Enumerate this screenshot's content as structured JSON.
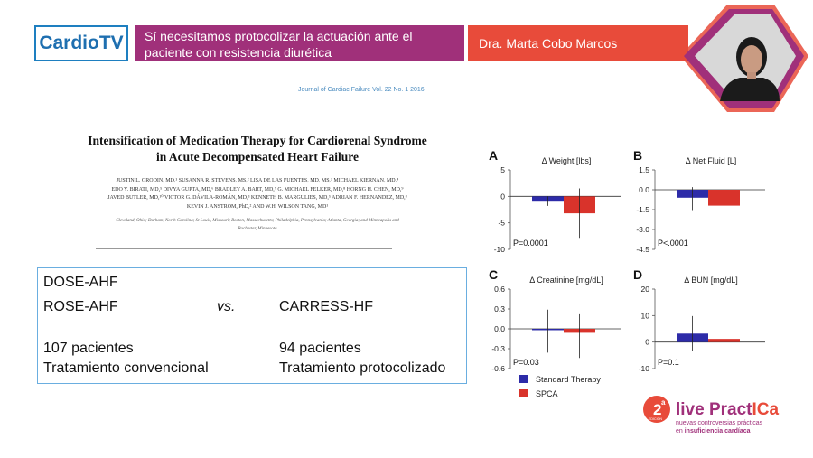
{
  "header": {
    "logo": "CardioTV",
    "title": "Sí necesitamos protocolizar la actuación ante el paciente con resistencia diurética",
    "speaker": "Dra. Marta Cobo Marcos"
  },
  "paper": {
    "journal": "Journal of Cardiac Failure Vol. 22 No. 1 2016",
    "title_line1": "Intensification of Medication Therapy for Cardiorenal Syndrome",
    "title_line2": "in Acute Decompensated Heart Failure",
    "authors_line1": "JUSTIN L. GRODIN, MD,¹ SUSANNA R. STEVENS, MS,² LISA DE LAS FUENTES, MD, MS,³ MICHAEL KIERNAN, MD,⁴",
    "authors_line2": "EDO Y. BIRATI, MD,⁵ DIVYA GUPTA, MD,⁶ BRADLEY A. BART, MD,⁷ G. MICHAEL FELKER, MD,⁸ HORNG H. CHEN, MD,⁹",
    "authors_line3": "JAVED BUTLER, MD,¹⁰ VICTOR G. DÁVILA-ROMÁN, MD,³ KENNETH B. MARGULIES, MD,⁵ ADRIAN F. HERNANDEZ, MD,⁸",
    "authors_line4": "KEVIN J. ANSTROM, PhD,² AND W.H. WILSON TANG, MD¹",
    "affiliations_line1": "Cleveland, Ohio; Durham, North Carolina; St Louis, Missouri; Boston, Massachusetts; Philadelphia, Pennsylvania; Atlanta, Georgia; and Minneapolis and",
    "affiliations_line2": "Rochester, Minnesota"
  },
  "comparison": {
    "left_trial1": "DOSE-AHF",
    "left_trial2": "ROSE-AHF",
    "vs": "vs.",
    "right_trial": "CARRESS-HF",
    "left_count": "107 pacientes",
    "left_treatment": "Tratamiento convencional",
    "right_count": "94 pacientes",
    "right_treatment": "Tratamiento protocolizado"
  },
  "chart_data": [
    {
      "type": "bar",
      "panel": "A",
      "title": "Δ Weight [lbs]",
      "yticks": [
        5,
        0,
        -5,
        -10
      ],
      "ylim": [
        -10,
        5
      ],
      "series": [
        {
          "name": "Standard Therapy",
          "value": -1.0,
          "ci": [
            -1.8,
            0.0
          ]
        },
        {
          "name": "SPCA",
          "value": -3.2,
          "ci": [
            -8.0,
            1.5
          ]
        }
      ],
      "annotation": "P=0.0001"
    },
    {
      "type": "bar",
      "panel": "B",
      "title": "Δ Net Fluid [L]",
      "yticks": [
        "1.5",
        "0.0",
        "-1.5",
        "-3.0",
        "-4.5"
      ],
      "ylim": [
        -4.5,
        1.5
      ],
      "series": [
        {
          "name": "Standard Therapy",
          "value": -0.6,
          "ci": [
            -1.6,
            0.2
          ]
        },
        {
          "name": "SPCA",
          "value": -1.2,
          "ci": [
            -2.1,
            0.0
          ]
        }
      ],
      "annotation": "P<.0001"
    },
    {
      "type": "bar",
      "panel": "C",
      "title": "Δ Creatinine [mg/dL]",
      "yticks": [
        "0.6",
        "0.3",
        "0.0",
        "-0.3",
        "-0.6"
      ],
      "ylim": [
        -0.6,
        0.6
      ],
      "series": [
        {
          "name": "Standard Therapy",
          "value": -0.02,
          "ci": [
            -0.36,
            0.29
          ]
        },
        {
          "name": "SPCA",
          "value": -0.06,
          "ci": [
            -0.44,
            0.22
          ]
        }
      ],
      "annotation": "P=0.03"
    },
    {
      "type": "bar",
      "panel": "D",
      "title": "Δ BUN [mg/dL]",
      "yticks": [
        20,
        10,
        0,
        -10
      ],
      "ylim": [
        -10,
        20
      ],
      "series": [
        {
          "name": "Standard Therapy",
          "value": 3.2,
          "ci": [
            -3.2,
            9.8
          ]
        },
        {
          "name": "SPCA",
          "value": 1.2,
          "ci": [
            -9.5,
            12.0
          ]
        }
      ],
      "annotation": "P=0.1"
    }
  ],
  "legend": {
    "standard": "Standard Therapy",
    "spca": "SPCA"
  },
  "colors": {
    "standard": "#2d2ba8",
    "spca": "#d9332b",
    "magenta": "#a0307a",
    "orange": "#e84b3a",
    "blue": "#1e7fc0"
  },
  "brand": {
    "edition_number": "2",
    "edition_sup": "a",
    "edition_word": "EDICIÓN",
    "name_part1": "live Pract",
    "name_part2": "ICa",
    "tagline1": "nuevas controversias prácticas",
    "tagline2_pre": "en ",
    "tagline2_bold": "insuficiencia cardíaca"
  }
}
